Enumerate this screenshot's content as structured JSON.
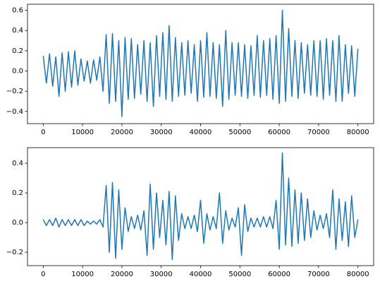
{
  "chart_data": [
    {
      "type": "line",
      "color": "#1f77b4",
      "xlim": [
        -4000,
        84000
      ],
      "ylim": [
        -0.52,
        0.66
      ],
      "xticks": [
        0,
        10000,
        20000,
        30000,
        40000,
        50000,
        60000,
        70000,
        80000
      ],
      "yticks": [
        {
          "value": -0.4,
          "label": "−0.4"
        },
        {
          "value": -0.2,
          "label": "−0.2"
        },
        {
          "value": 0,
          "label": "0.0"
        },
        0.2,
        0.4,
        0.6
      ],
      "x": [
        0,
        800,
        1600,
        2400,
        3200,
        4000,
        4800,
        5600,
        6400,
        7200,
        8000,
        8800,
        9600,
        10400,
        11200,
        12000,
        12800,
        13600,
        14400,
        15200,
        16000,
        16800,
        17600,
        18400,
        19200,
        20000,
        20800,
        21600,
        22400,
        23200,
        24000,
        24800,
        25600,
        26400,
        27200,
        28000,
        28800,
        29600,
        30400,
        31200,
        32000,
        32800,
        33600,
        34400,
        35200,
        36000,
        36800,
        37600,
        38400,
        39200,
        40000,
        40800,
        41600,
        42400,
        43200,
        44000,
        44800,
        45600,
        46400,
        47200,
        48000,
        48800,
        49600,
        50400,
        51200,
        52000,
        52800,
        53600,
        54400,
        55200,
        56000,
        56800,
        57600,
        58400,
        59200,
        60000,
        60800,
        61600,
        62400,
        63200,
        64000,
        64800,
        65600,
        66400,
        67200,
        68000,
        68800,
        69600,
        70400,
        71200,
        72000,
        72800,
        73600,
        74400,
        75200,
        76000,
        76800,
        77600,
        78400,
        79200,
        80000
      ],
      "values": [
        0.15,
        -0.12,
        0.17,
        -0.15,
        0.14,
        -0.25,
        0.18,
        -0.2,
        0.19,
        -0.16,
        0.2,
        -0.14,
        0.12,
        -0.1,
        0.1,
        -0.12,
        0.11,
        -0.09,
        0.14,
        -0.2,
        0.36,
        -0.32,
        0.37,
        -0.3,
        0.3,
        -0.45,
        0.33,
        -0.28,
        0.32,
        -0.27,
        0.26,
        -0.23,
        0.3,
        -0.3,
        0.28,
        -0.35,
        0.35,
        -0.25,
        0.38,
        -0.28,
        0.45,
        -0.3,
        0.33,
        -0.25,
        0.28,
        -0.24,
        0.3,
        -0.22,
        0.26,
        -0.3,
        0.3,
        -0.26,
        0.38,
        -0.25,
        0.28,
        -0.27,
        0.26,
        -0.35,
        0.4,
        -0.28,
        0.28,
        -0.24,
        0.28,
        -0.25,
        0.26,
        -0.27,
        0.25,
        -0.24,
        0.35,
        -0.26,
        0.3,
        -0.24,
        0.32,
        -0.28,
        0.35,
        -0.32,
        0.6,
        -0.3,
        0.42,
        -0.25,
        0.3,
        -0.27,
        0.28,
        -0.22,
        0.26,
        -0.24,
        0.3,
        -0.25,
        0.3,
        -0.28,
        0.32,
        -0.24,
        0.3,
        -0.3,
        0.35,
        -0.3,
        0.26,
        -0.22,
        0.25,
        -0.25,
        0.22
      ]
    },
    {
      "type": "line",
      "color": "#1f77b4",
      "xlim": [
        -4000,
        84000
      ],
      "ylim": [
        -0.29,
        0.505
      ],
      "xticks": [
        0,
        10000,
        20000,
        30000,
        40000,
        50000,
        60000,
        70000,
        80000
      ],
      "yticks": [
        {
          "value": -0.2,
          "label": "−0.2"
        },
        {
          "value": 0,
          "label": "0.0"
        },
        0.2,
        0.4
      ],
      "x": [
        0,
        800,
        1600,
        2400,
        3200,
        4000,
        4800,
        5600,
        6400,
        7200,
        8000,
        8800,
        9600,
        10400,
        11200,
        12000,
        12800,
        13600,
        14400,
        15200,
        16000,
        16800,
        17600,
        18400,
        19200,
        20000,
        20800,
        21600,
        22400,
        23200,
        24000,
        24800,
        25600,
        26400,
        27200,
        28000,
        28800,
        29600,
        30400,
        31200,
        32000,
        32800,
        33600,
        34400,
        35200,
        36000,
        36800,
        37600,
        38400,
        39200,
        40000,
        40800,
        41600,
        42400,
        43200,
        44000,
        44800,
        45600,
        46400,
        47200,
        48000,
        48800,
        49600,
        50400,
        51200,
        52000,
        52800,
        53600,
        54400,
        55200,
        56000,
        56800,
        57600,
        58400,
        59200,
        60000,
        60800,
        61600,
        62400,
        63200,
        64000,
        64800,
        65600,
        66400,
        67200,
        68000,
        68800,
        69600,
        70400,
        71200,
        72000,
        72800,
        73600,
        74400,
        75200,
        76000,
        76800,
        77600,
        78400,
        79200,
        80000
      ],
      "values": [
        0.02,
        -0.02,
        0.02,
        -0.02,
        0.03,
        -0.03,
        0.02,
        -0.02,
        0.02,
        -0.02,
        0.02,
        -0.02,
        0.02,
        -0.02,
        0.01,
        -0.01,
        0.01,
        -0.01,
        0.02,
        -0.03,
        0.25,
        -0.2,
        0.27,
        -0.24,
        0.22,
        -0.18,
        0.1,
        -0.06,
        0.04,
        -0.04,
        0.05,
        -0.05,
        0.08,
        -0.22,
        0.26,
        -0.18,
        0.2,
        -0.1,
        0.15,
        -0.15,
        0.21,
        -0.25,
        0.18,
        -0.12,
        0.06,
        -0.04,
        0.04,
        -0.04,
        0.05,
        -0.06,
        0.15,
        -0.14,
        0.06,
        -0.05,
        0.04,
        -0.04,
        0.2,
        -0.14,
        0.08,
        -0.05,
        0.03,
        -0.03,
        0.1,
        -0.22,
        0.12,
        -0.06,
        0.03,
        -0.03,
        0.03,
        -0.03,
        0.04,
        -0.03,
        0.04,
        -0.04,
        0.15,
        -0.18,
        0.47,
        -0.15,
        0.3,
        -0.16,
        0.22,
        -0.14,
        0.2,
        -0.12,
        0.16,
        -0.1,
        0.08,
        -0.05,
        0.05,
        -0.04,
        0.06,
        -0.1,
        0.22,
        -0.18,
        0.16,
        -0.12,
        0.14,
        -0.16,
        0.18,
        -0.1,
        0.02
      ]
    }
  ]
}
